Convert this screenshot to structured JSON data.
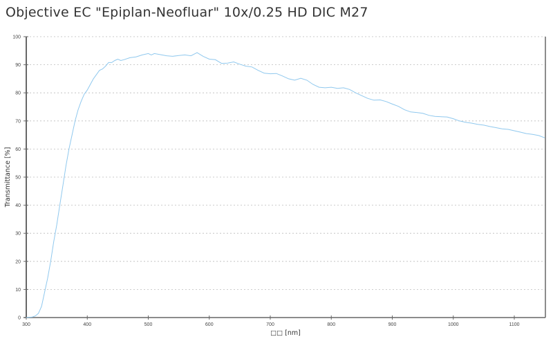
{
  "title": "Objective EC \"Epiplan-Neofluar\" 10x/0.25 HD DIC M27",
  "colors": {
    "line": "#8fc8ee",
    "grid": "#bbbbbb",
    "axis": "#666666",
    "text": "#333333"
  },
  "chart_data": {
    "type": "line",
    "title": "Objective EC \"Epiplan-Neofluar\" 10x/0.25 HD DIC M27",
    "xlabel": "□□ [nm]",
    "ylabel": "Transmittance [%]",
    "xlim": [
      300,
      1150
    ],
    "ylim": [
      0,
      100
    ],
    "grid": "horizontal dashed",
    "legend": "none",
    "x_ticks": [
      300,
      400,
      500,
      600,
      700,
      800,
      900,
      1000,
      1100
    ],
    "y_ticks": [
      0,
      10,
      20,
      30,
      40,
      50,
      60,
      70,
      80,
      90,
      100
    ],
    "series": [
      {
        "name": "Transmittance",
        "x": [
          300,
          310,
          315,
          320,
          325,
          330,
          335,
          340,
          345,
          350,
          355,
          360,
          365,
          370,
          375,
          380,
          385,
          390,
          395,
          400,
          405,
          410,
          415,
          420,
          425,
          430,
          435,
          440,
          445,
          450,
          455,
          460,
          470,
          480,
          490,
          500,
          505,
          510,
          520,
          530,
          540,
          550,
          560,
          570,
          580,
          590,
          600,
          610,
          620,
          630,
          640,
          650,
          660,
          670,
          680,
          690,
          700,
          710,
          720,
          730,
          740,
          750,
          760,
          770,
          780,
          790,
          800,
          810,
          820,
          830,
          840,
          850,
          860,
          870,
          880,
          890,
          900,
          910,
          920,
          930,
          940,
          950,
          960,
          970,
          980,
          990,
          1000,
          1010,
          1020,
          1030,
          1040,
          1050,
          1060,
          1070,
          1080,
          1090,
          1100,
          1110,
          1120,
          1130,
          1140,
          1150
        ],
        "values": [
          0,
          0.2,
          0.6,
          1.5,
          4,
          9,
          14,
          20,
          27,
          33,
          40,
          47,
          54,
          60,
          65,
          70,
          74,
          77,
          79.5,
          81,
          83,
          85,
          86.5,
          88,
          88.5,
          89.5,
          90.8,
          90.8,
          91.5,
          92,
          91.5,
          91.8,
          92.5,
          92.8,
          93.5,
          94,
          93.5,
          94,
          93.6,
          93.2,
          93,
          93.3,
          93.5,
          93.2,
          94.3,
          93,
          92,
          91.8,
          90.5,
          90.6,
          91,
          90.2,
          89.5,
          89.2,
          88,
          87,
          86.8,
          86.9,
          86,
          85,
          84.5,
          85.2,
          84.5,
          83,
          82,
          81.8,
          82,
          81.6,
          81.8,
          81.2,
          80,
          79,
          78,
          77.4,
          77.5,
          76.9,
          76,
          75.2,
          74,
          73.2,
          73,
          72.7,
          72,
          71.6,
          71.5,
          71.4,
          70.8,
          70,
          69.5,
          69.2,
          68.8,
          68.5,
          68,
          67.6,
          67.2,
          67,
          66.5,
          66,
          65.5,
          65.2,
          64.8,
          64
        ]
      }
    ]
  }
}
